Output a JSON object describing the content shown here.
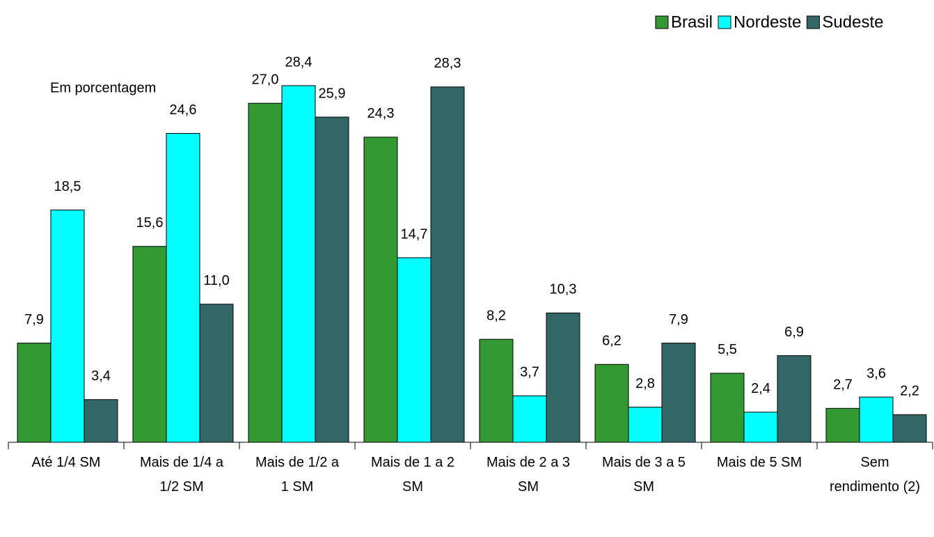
{
  "chart_data": {
    "type": "bar",
    "annotation": "Em porcentagem",
    "categories": [
      "Até 1/4 SM",
      "Mais de 1/4 a 1/2 SM",
      "Mais de 1/2 a 1 SM",
      "Mais de 1 a 2 SM",
      "Mais de 2 a 3 SM",
      "Mais de 3 a 5 SM",
      "Mais de 5 SM",
      "Sem rendimento (2)"
    ],
    "series": [
      {
        "name": "Brasil",
        "color": "#339933",
        "values": [
          7.9,
          15.6,
          27.0,
          24.3,
          8.2,
          6.2,
          5.5,
          2.7
        ],
        "value_labels": [
          "7,9",
          "15,6",
          "27,0",
          "24,3",
          "8,2",
          "6,2",
          "5,5",
          "2,7"
        ]
      },
      {
        "name": "Nordeste",
        "color": "#00ffff",
        "values": [
          18.5,
          24.6,
          28.4,
          14.7,
          3.7,
          2.8,
          2.4,
          3.6
        ],
        "value_labels": [
          "18,5",
          "24,6",
          "28,4",
          "14,7",
          "3,7",
          "2,8",
          "2,4",
          "3,6"
        ]
      },
      {
        "name": "Sudeste",
        "color": "#336666",
        "values": [
          3.4,
          11.0,
          25.9,
          28.3,
          10.3,
          7.9,
          6.9,
          2.2
        ],
        "value_labels": [
          "3,4",
          "11,0",
          "25,9",
          "28,3",
          "10,3",
          "7,9",
          "6,9",
          "2,2"
        ]
      }
    ],
    "ylim": [
      0,
      35
    ],
    "legend": "top-right"
  }
}
